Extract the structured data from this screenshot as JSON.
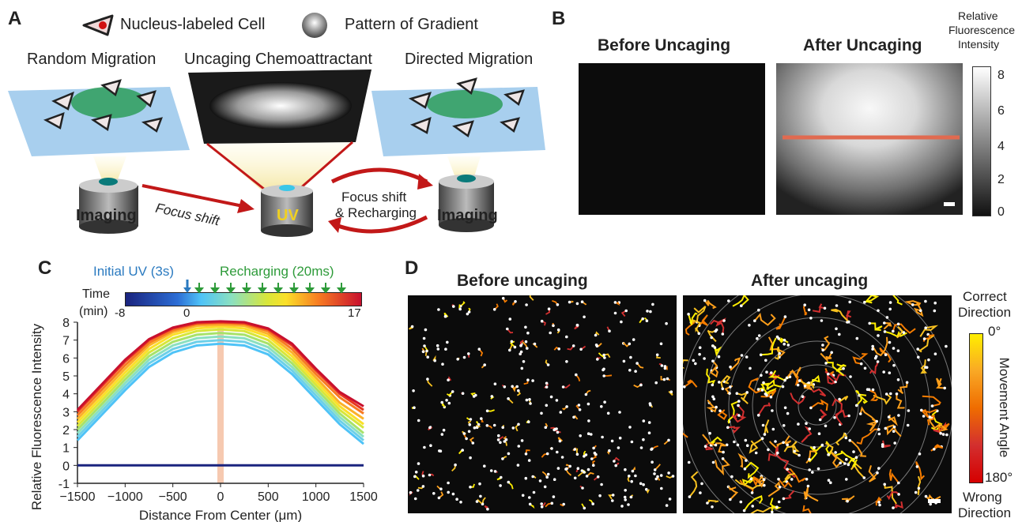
{
  "panel_a": {
    "letter": "A",
    "legend_cell": "Nucleus-labeled Cell",
    "legend_gradient": "Pattern of Gradient",
    "title_random": "Random Migration",
    "title_uncaging": "Uncaging Chemoattractant",
    "title_directed": "Directed Migration",
    "label_imaging_left": "Imaging",
    "label_imaging_right": "Imaging",
    "label_uv": "UV",
    "label_focus_shift": "Focus shift",
    "label_focus_recharge_1": "Focus shift",
    "label_focus_recharge_2": "& Recharging"
  },
  "panel_b": {
    "letter": "B",
    "title_before": "Before Uncaging",
    "title_after": "After Uncaging",
    "colorbar_title_1": "Relative",
    "colorbar_title_2": "Fluorescence",
    "colorbar_title_3": "Intensity",
    "colorbar_ticks": [
      "8",
      "6",
      "4",
      "2",
      "0"
    ]
  },
  "panel_c": {
    "letter": "C",
    "initial_uv": "Initial UV (3s)",
    "recharging": "Recharging (20ms)",
    "time_label_1": "Time",
    "time_label_2": "(min)",
    "time_ticks": [
      "-8",
      "0",
      "17"
    ]
  },
  "panel_d": {
    "letter": "D",
    "title_before": "Before uncaging",
    "title_after": "After uncaging",
    "correct_1": "Correct",
    "correct_2": "Direction",
    "wrong_1": "Wrong",
    "wrong_2": "Direction",
    "angle_label": "Movement Angle",
    "angle_top": "0°",
    "angle_bottom": "180°"
  },
  "chart_data": {
    "type": "line",
    "title": "",
    "xlabel": "Distance From Center (μm)",
    "ylabel": "Relative Fluorescence Intensity",
    "xlim": [
      -1500,
      1500
    ],
    "ylim": [
      -1,
      8
    ],
    "xticks": [
      -1500,
      -1000,
      -500,
      0,
      500,
      1000,
      1500
    ],
    "yticks": [
      -1,
      0,
      1,
      2,
      3,
      4,
      5,
      6,
      7,
      8
    ],
    "x": [
      -1500,
      -1250,
      -1000,
      -750,
      -500,
      -250,
      0,
      250,
      500,
      750,
      1000,
      1250,
      1500
    ],
    "highlight_x": 0,
    "series": [
      {
        "time_min": -8,
        "color": "#1a237e",
        "values": [
          0,
          0,
          0,
          0,
          0,
          0,
          0,
          0,
          0,
          0,
          0,
          0,
          0
        ]
      },
      {
        "time_min": 0,
        "color": "#4fc3f7",
        "values": [
          1.4,
          2.8,
          4.2,
          5.5,
          6.3,
          6.7,
          6.8,
          6.7,
          6.2,
          5.1,
          3.7,
          2.3,
          1.2
        ]
      },
      {
        "time_min": 2,
        "color": "#6dd0e8",
        "values": [
          1.6,
          3.0,
          4.4,
          5.7,
          6.5,
          6.9,
          7.0,
          6.9,
          6.4,
          5.3,
          3.9,
          2.5,
          1.4
        ]
      },
      {
        "time_min": 4,
        "color": "#8be0c0",
        "values": [
          1.8,
          3.2,
          4.6,
          5.9,
          6.7,
          7.1,
          7.2,
          7.1,
          6.6,
          5.5,
          4.1,
          2.7,
          1.6
        ]
      },
      {
        "time_min": 6,
        "color": "#a8e26a",
        "values": [
          2.0,
          3.4,
          4.8,
          6.1,
          6.9,
          7.3,
          7.4,
          7.3,
          6.8,
          5.7,
          4.3,
          2.9,
          1.8
        ]
      },
      {
        "time_min": 8,
        "color": "#d8e63a",
        "values": [
          2.2,
          3.6,
          5.0,
          6.3,
          7.1,
          7.5,
          7.6,
          7.5,
          7.0,
          5.9,
          4.5,
          3.1,
          2.1
        ]
      },
      {
        "time_min": 10,
        "color": "#fbe029",
        "values": [
          2.4,
          3.8,
          5.2,
          6.5,
          7.3,
          7.65,
          7.75,
          7.65,
          7.2,
          6.1,
          4.7,
          3.3,
          2.3
        ]
      },
      {
        "time_min": 12,
        "color": "#fbb12a",
        "values": [
          2.6,
          4.0,
          5.4,
          6.7,
          7.45,
          7.8,
          7.85,
          7.8,
          7.35,
          6.3,
          4.9,
          3.5,
          2.6
        ]
      },
      {
        "time_min": 14,
        "color": "#f77b22",
        "values": [
          2.8,
          4.2,
          5.6,
          6.85,
          7.55,
          7.9,
          7.95,
          7.9,
          7.5,
          6.5,
          5.1,
          3.8,
          2.9
        ]
      },
      {
        "time_min": 16,
        "color": "#e8371f",
        "values": [
          3.0,
          4.4,
          5.8,
          7.0,
          7.65,
          7.95,
          8.0,
          7.95,
          7.6,
          6.7,
          5.3,
          4.0,
          3.1
        ]
      },
      {
        "time_min": 17,
        "color": "#c8102e",
        "values": [
          3.1,
          4.5,
          5.9,
          7.05,
          7.7,
          8.0,
          8.05,
          8.0,
          7.65,
          6.8,
          5.4,
          4.1,
          3.3
        ]
      }
    ]
  }
}
